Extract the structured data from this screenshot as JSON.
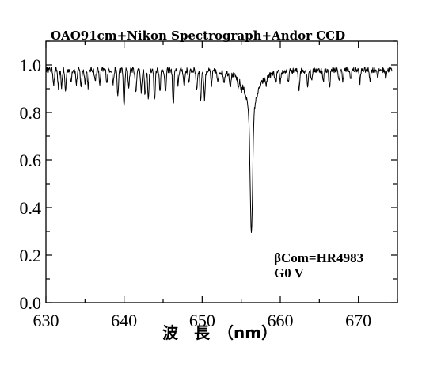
{
  "chart_data": {
    "type": "line",
    "title": "OAO91cm+Nikon Spectrograph+Andor CCD",
    "xlabel": "波　長　（nm）",
    "ylabel": "",
    "xlim": [
      630,
      675
    ],
    "ylim": [
      0.0,
      1.1
    ],
    "x_ticks": [
      "630",
      "640",
      "650",
      "660",
      "670"
    ],
    "y_ticks": [
      "0.0",
      "0.2",
      "0.4",
      "0.6",
      "0.8",
      "1.0"
    ],
    "grid": false,
    "annotation_lines": [
      "βCom=HR4983",
      "G0 V"
    ],
    "series": [
      {
        "continuum": 0.98,
        "noise": 0.012,
        "absorption_lines": [
          {
            "x": 631.0,
            "depth": 0.06
          },
          {
            "x": 631.6,
            "depth": 0.08
          },
          {
            "x": 632.0,
            "depth": 0.07
          },
          {
            "x": 632.5,
            "depth": 0.09
          },
          {
            "x": 633.2,
            "depth": 0.05
          },
          {
            "x": 633.9,
            "depth": 0.06
          },
          {
            "x": 634.5,
            "depth": 0.07
          },
          {
            "x": 635.0,
            "depth": 0.05
          },
          {
            "x": 635.4,
            "depth": 0.07
          },
          {
            "x": 636.3,
            "depth": 0.05
          },
          {
            "x": 636.9,
            "depth": 0.06
          },
          {
            "x": 637.8,
            "depth": 0.05
          },
          {
            "x": 638.6,
            "depth": 0.06
          },
          {
            "x": 639.2,
            "depth": 0.11
          },
          {
            "x": 640.0,
            "depth": 0.16
          },
          {
            "x": 640.6,
            "depth": 0.07
          },
          {
            "x": 641.5,
            "depth": 0.1
          },
          {
            "x": 642.2,
            "depth": 0.09
          },
          {
            "x": 642.7,
            "depth": 0.11
          },
          {
            "x": 643.1,
            "depth": 0.12
          },
          {
            "x": 643.9,
            "depth": 0.13
          },
          {
            "x": 644.6,
            "depth": 0.08
          },
          {
            "x": 645.3,
            "depth": 0.1
          },
          {
            "x": 646.3,
            "depth": 0.15
          },
          {
            "x": 646.9,
            "depth": 0.06
          },
          {
            "x": 647.7,
            "depth": 0.07
          },
          {
            "x": 648.3,
            "depth": 0.05
          },
          {
            "x": 649.3,
            "depth": 0.08
          },
          {
            "x": 649.8,
            "depth": 0.13
          },
          {
            "x": 650.3,
            "depth": 0.12
          },
          {
            "x": 651.2,
            "depth": 0.06
          },
          {
            "x": 652.0,
            "depth": 0.05
          },
          {
            "x": 652.8,
            "depth": 0.04
          },
          {
            "x": 653.6,
            "depth": 0.05
          },
          {
            "x": 654.6,
            "depth": 0.04
          },
          {
            "x": 655.0,
            "depth": 0.03
          },
          {
            "x": 658.2,
            "depth": 0.03
          },
          {
            "x": 659.4,
            "depth": 0.05
          },
          {
            "x": 660.0,
            "depth": 0.04
          },
          {
            "x": 661.0,
            "depth": 0.05
          },
          {
            "x": 662.4,
            "depth": 0.08
          },
          {
            "x": 663.5,
            "depth": 0.06
          },
          {
            "x": 664.0,
            "depth": 0.04
          },
          {
            "x": 665.5,
            "depth": 0.05
          },
          {
            "x": 666.3,
            "depth": 0.07
          },
          {
            "x": 667.5,
            "depth": 0.05
          },
          {
            "x": 668.0,
            "depth": 0.04
          },
          {
            "x": 669.0,
            "depth": 0.04
          },
          {
            "x": 670.2,
            "depth": 0.05
          },
          {
            "x": 671.5,
            "depth": 0.04
          },
          {
            "x": 672.5,
            "depth": 0.03
          },
          {
            "x": 673.5,
            "depth": 0.03
          }
        ],
        "h_alpha": {
          "x": 656.3,
          "minimum": 0.3
        }
      }
    ]
  }
}
